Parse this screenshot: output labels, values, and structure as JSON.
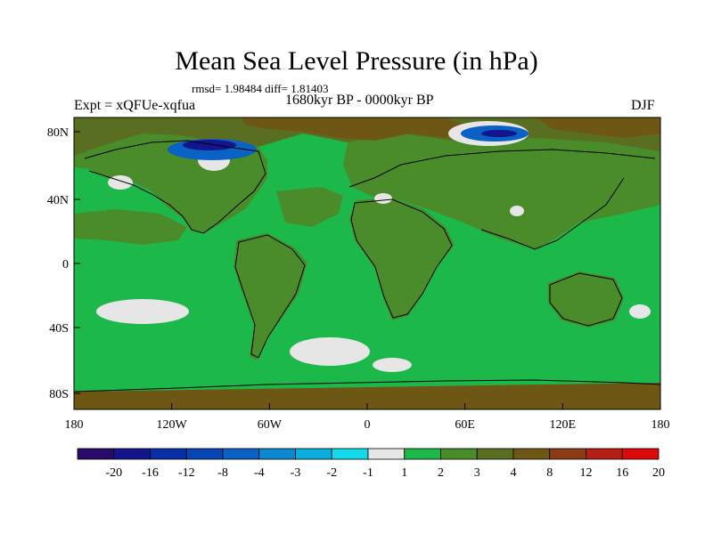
{
  "title": "Mean Sea Level Pressure (in hPa)",
  "stats": "rmsd= 1.98484  diff= 1.81403",
  "experiment": "Expt = xQFUe-xqfua",
  "period": "1680kyr BP - 0000kyr BP",
  "season": "DJF",
  "lat_ticks": [
    "80N",
    "40N",
    "0",
    "40S",
    "80S"
  ],
  "lon_ticks": [
    "180",
    "120W",
    "60W",
    "0",
    "60E",
    "120E",
    "180"
  ],
  "colorbar": {
    "labels": [
      "-20",
      "-16",
      "-12",
      "-8",
      "-4",
      "-3",
      "-2",
      "-1",
      "1",
      "2",
      "3",
      "4",
      "8",
      "12",
      "16",
      "20"
    ],
    "colors": [
      "#2a0a6b",
      "#14148c",
      "#0a2ea8",
      "#0846b4",
      "#0a62c4",
      "#0a88d0",
      "#0aaede",
      "#12dcec",
      "#e6e6e6",
      "#1cb84a",
      "#4a8c2a",
      "#5a6e22",
      "#6e5614",
      "#8c3c14",
      "#b41e14",
      "#dc0a0a"
    ]
  },
  "map_colors": {
    "ocean_green": "#1cb84a",
    "land_olive": "#4a8c2a",
    "dark_olive": "#5a6e22",
    "brown": "#6e5614",
    "white": "#e6e6e6",
    "blue": "#0a62c4",
    "dark_blue": "#14148c"
  }
}
